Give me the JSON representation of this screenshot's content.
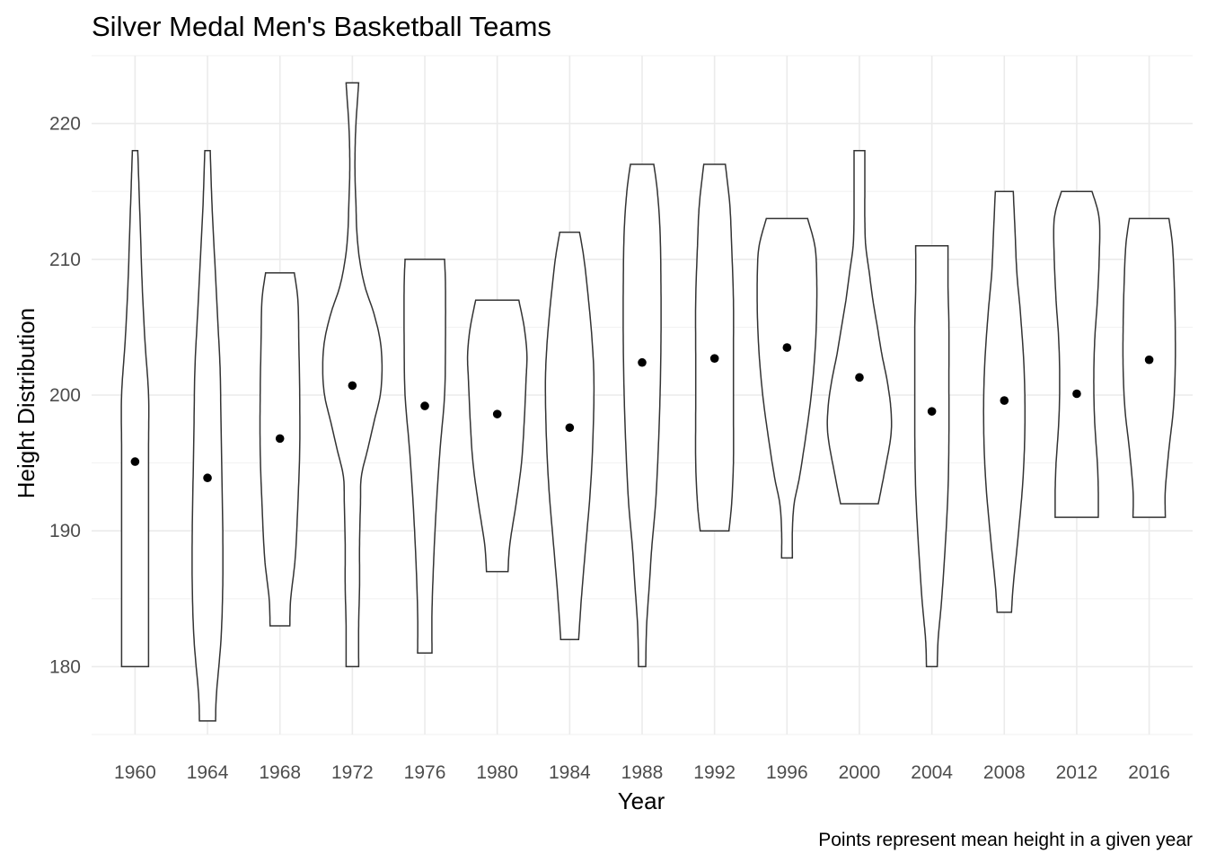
{
  "chart_data": {
    "type": "violin",
    "title": "Silver Medal Men's Basketball Teams",
    "xlabel": "Year",
    "ylabel": "Height Distribution",
    "caption": "Points represent mean height in a given year",
    "ylim": [
      175,
      225
    ],
    "yticks": [
      180,
      190,
      200,
      210,
      220
    ],
    "grid": true,
    "legend": "none",
    "categories": [
      "1960",
      "1964",
      "1968",
      "1972",
      "1976",
      "1980",
      "1984",
      "1988",
      "1992",
      "1996",
      "2000",
      "2004",
      "2008",
      "2012",
      "2016"
    ],
    "series": [
      {
        "year": "1960",
        "min": 180,
        "max": 218,
        "mean": 195.1,
        "profile": [
          [
            180,
            15
          ],
          [
            184,
            15
          ],
          [
            188,
            15
          ],
          [
            192,
            15
          ],
          [
            196,
            15
          ],
          [
            200,
            15
          ],
          [
            204,
            11
          ],
          [
            208,
            8
          ],
          [
            212,
            6
          ],
          [
            216,
            4
          ],
          [
            218,
            3
          ]
        ]
      },
      {
        "year": "1964",
        "min": 176,
        "max": 218,
        "mean": 193.9,
        "profile": [
          [
            176,
            9
          ],
          [
            178,
            10
          ],
          [
            182,
            15
          ],
          [
            186,
            17
          ],
          [
            190,
            17
          ],
          [
            194,
            16
          ],
          [
            198,
            15
          ],
          [
            202,
            14
          ],
          [
            206,
            11
          ],
          [
            210,
            8
          ],
          [
            214,
            5
          ],
          [
            218,
            3
          ]
        ]
      },
      {
        "year": "1968",
        "min": 183,
        "max": 209,
        "mean": 196.8,
        "profile": [
          [
            183,
            11
          ],
          [
            185,
            12
          ],
          [
            188,
            17
          ],
          [
            192,
            20
          ],
          [
            196,
            22
          ],
          [
            200,
            22
          ],
          [
            204,
            21
          ],
          [
            207,
            20
          ],
          [
            209,
            16
          ]
        ]
      },
      {
        "year": "1972",
        "min": 180,
        "max": 223,
        "mean": 200.7,
        "profile": [
          [
            180,
            7
          ],
          [
            183,
            7
          ],
          [
            186,
            8
          ],
          [
            189,
            8
          ],
          [
            192,
            9
          ],
          [
            194,
            10
          ],
          [
            196,
            17
          ],
          [
            198,
            24
          ],
          [
            200,
            31
          ],
          [
            202,
            33
          ],
          [
            204,
            31
          ],
          [
            206,
            24
          ],
          [
            208,
            14
          ],
          [
            210,
            8
          ],
          [
            212,
            5
          ],
          [
            214,
            4
          ],
          [
            216,
            3
          ],
          [
            218,
            3
          ],
          [
            220,
            4
          ],
          [
            222,
            6
          ],
          [
            223,
            7
          ]
        ]
      },
      {
        "year": "1976",
        "min": 181,
        "max": 210,
        "mean": 199.2,
        "profile": [
          [
            181,
            8
          ],
          [
            184,
            8
          ],
          [
            188,
            10
          ],
          [
            192,
            13
          ],
          [
            196,
            17
          ],
          [
            200,
            22
          ],
          [
            204,
            23
          ],
          [
            208,
            23
          ],
          [
            210,
            22
          ]
        ]
      },
      {
        "year": "1980",
        "min": 187,
        "max": 207,
        "mean": 198.6,
        "profile": [
          [
            187,
            12
          ],
          [
            189,
            14
          ],
          [
            192,
            21
          ],
          [
            195,
            27
          ],
          [
            198,
            30
          ],
          [
            201,
            32
          ],
          [
            203,
            33
          ],
          [
            205,
            30
          ],
          [
            207,
            24
          ]
        ]
      },
      {
        "year": "1984",
        "min": 182,
        "max": 212,
        "mean": 197.6,
        "profile": [
          [
            182,
            10
          ],
          [
            185,
            13
          ],
          [
            189,
            18
          ],
          [
            193,
            23
          ],
          [
            197,
            26
          ],
          [
            201,
            27
          ],
          [
            204,
            25
          ],
          [
            207,
            21
          ],
          [
            210,
            16
          ],
          [
            212,
            11
          ]
        ]
      },
      {
        "year": "1988",
        "min": 180,
        "max": 217,
        "mean": 202.4,
        "profile": [
          [
            180,
            4
          ],
          [
            183,
            5
          ],
          [
            186,
            8
          ],
          [
            189,
            11
          ],
          [
            192,
            15
          ],
          [
            196,
            18
          ],
          [
            200,
            20
          ],
          [
            204,
            21
          ],
          [
            208,
            21
          ],
          [
            212,
            20
          ],
          [
            215,
            17
          ],
          [
            217,
            13
          ]
        ]
      },
      {
        "year": "1992",
        "min": 190,
        "max": 217,
        "mean": 202.7,
        "profile": [
          [
            190,
            16
          ],
          [
            192,
            19
          ],
          [
            195,
            21
          ],
          [
            199,
            21
          ],
          [
            203,
            21
          ],
          [
            207,
            21
          ],
          [
            211,
            19
          ],
          [
            214,
            17
          ],
          [
            217,
            12
          ]
        ]
      },
      {
        "year": "1996",
        "min": 188,
        "max": 213,
        "mean": 203.5,
        "profile": [
          [
            188,
            6
          ],
          [
            190,
            6
          ],
          [
            192,
            8
          ],
          [
            194,
            14
          ],
          [
            197,
            21
          ],
          [
            200,
            27
          ],
          [
            203,
            31
          ],
          [
            206,
            33
          ],
          [
            209,
            33
          ],
          [
            211,
            31
          ],
          [
            213,
            23
          ]
        ]
      },
      {
        "year": "2000",
        "min": 192,
        "max": 218,
        "mean": 201.3,
        "profile": [
          [
            192,
            21
          ],
          [
            194,
            27
          ],
          [
            197,
            35
          ],
          [
            199,
            35
          ],
          [
            201,
            31
          ],
          [
            203,
            25
          ],
          [
            205,
            20
          ],
          [
            207,
            15
          ],
          [
            209,
            11
          ],
          [
            211,
            7
          ],
          [
            213,
            6
          ],
          [
            215,
            6
          ],
          [
            217,
            6
          ],
          [
            218,
            6
          ]
        ]
      },
      {
        "year": "2004",
        "min": 180,
        "max": 211,
        "mean": 198.8,
        "profile": [
          [
            180,
            6
          ],
          [
            182,
            7
          ],
          [
            185,
            11
          ],
          [
            189,
            15
          ],
          [
            193,
            18
          ],
          [
            197,
            19
          ],
          [
            201,
            19
          ],
          [
            205,
            19
          ],
          [
            208,
            18
          ],
          [
            211,
            18
          ]
        ]
      },
      {
        "year": "2008",
        "min": 184,
        "max": 215,
        "mean": 199.6,
        "profile": [
          [
            184,
            8
          ],
          [
            186,
            10
          ],
          [
            190,
            16
          ],
          [
            194,
            21
          ],
          [
            198,
            23
          ],
          [
            202,
            22
          ],
          [
            206,
            18
          ],
          [
            209,
            14
          ],
          [
            212,
            12
          ],
          [
            215,
            10
          ]
        ]
      },
      {
        "year": "2012",
        "min": 191,
        "max": 215,
        "mean": 200.1,
        "profile": [
          [
            191,
            24
          ],
          [
            193,
            24
          ],
          [
            195,
            23
          ],
          [
            198,
            20
          ],
          [
            201,
            19
          ],
          [
            204,
            20
          ],
          [
            207,
            23
          ],
          [
            210,
            25
          ],
          [
            213,
            25
          ],
          [
            215,
            17
          ]
        ]
      },
      {
        "year": "2016",
        "min": 191,
        "max": 213,
        "mean": 202.6,
        "profile": [
          [
            191,
            18
          ],
          [
            193,
            18
          ],
          [
            196,
            22
          ],
          [
            199,
            27
          ],
          [
            202,
            29
          ],
          [
            205,
            29
          ],
          [
            208,
            28
          ],
          [
            211,
            26
          ],
          [
            213,
            22
          ]
        ]
      }
    ]
  }
}
